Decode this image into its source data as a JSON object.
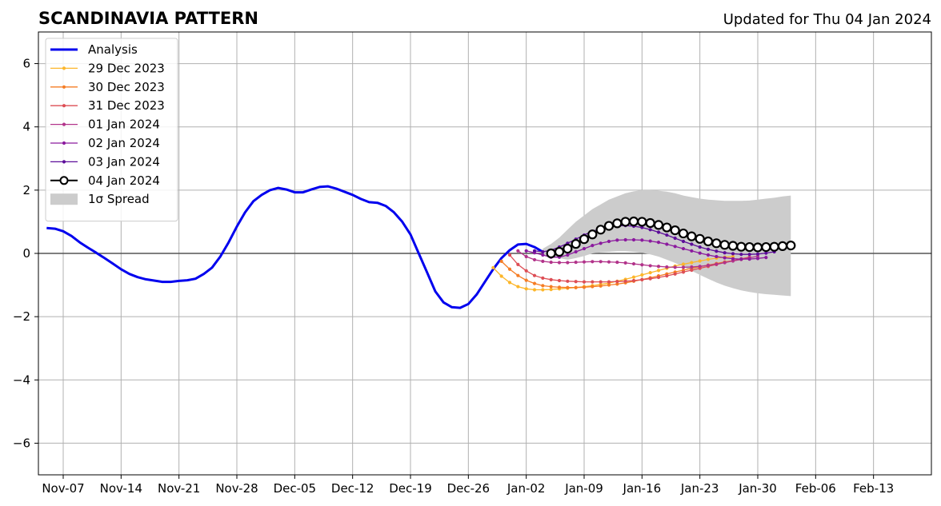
{
  "chart_data": {
    "type": "line",
    "title": "SCANDINAVIA PATTERN",
    "subtitle": "Updated for Thu 04 Jan 2024",
    "xlabel": "",
    "ylabel": "",
    "x_axis": {
      "type": "date",
      "range": [
        "2023-11-04",
        "2024-02-20"
      ],
      "ticks": [
        "2023-11-07",
        "2023-11-14",
        "2023-11-21",
        "2023-11-28",
        "2023-12-05",
        "2023-12-12",
        "2023-12-19",
        "2023-12-26",
        "2024-01-02",
        "2024-01-09",
        "2024-01-16",
        "2024-01-23",
        "2024-01-30",
        "2024-02-06",
        "2024-02-13"
      ],
      "tick_labels": [
        "Nov-07",
        "Nov-14",
        "Nov-21",
        "Nov-28",
        "Dec-05",
        "Dec-12",
        "Dec-19",
        "Dec-26",
        "Jan-02",
        "Jan-09",
        "Jan-16",
        "Jan-23",
        "Jan-30",
        "Feb-06",
        "Feb-13"
      ]
    },
    "ylim": [
      -7,
      7
    ],
    "yticks": [
      -6,
      -4,
      -2,
      0,
      2,
      4,
      6
    ],
    "ytick_labels": [
      "−6",
      "−4",
      "−2",
      "0",
      "2",
      "4",
      "6"
    ],
    "grid": true,
    "legend_position": "top-left",
    "analysis": {
      "name": "Analysis",
      "color": "#0000ee",
      "start": "2023-11-05",
      "values": [
        0.8,
        0.78,
        0.7,
        0.55,
        0.35,
        0.18,
        0.02,
        -0.15,
        -0.32,
        -0.5,
        -0.65,
        -0.75,
        -0.82,
        -0.86,
        -0.9,
        -0.9,
        -0.87,
        -0.85,
        -0.8,
        -0.65,
        -0.45,
        -0.1,
        0.35,
        0.85,
        1.3,
        1.65,
        1.85,
        2.0,
        2.07,
        2.02,
        1.93,
        1.93,
        2.02,
        2.1,
        2.12,
        2.05,
        1.95,
        1.85,
        1.72,
        1.62,
        1.6,
        1.5,
        1.3,
        1.0,
        0.6,
        0.0,
        -0.6,
        -1.2,
        -1.55,
        -1.7,
        -1.72,
        -1.6,
        -1.3,
        -0.9,
        -0.5,
        -0.15,
        0.1,
        0.28,
        0.3,
        0.2,
        0.05
      ]
    },
    "forecasts": [
      {
        "name": "29 Dec 2023",
        "color": "#fcb62a",
        "start": "2023-12-29",
        "values": [
          -0.45,
          -0.72,
          -0.92,
          -1.05,
          -1.12,
          -1.15,
          -1.15,
          -1.14,
          -1.12,
          -1.1,
          -1.08,
          -1.05,
          -1.02,
          -0.98,
          -0.94,
          -0.88,
          -0.82,
          -0.75,
          -0.68,
          -0.61,
          -0.54,
          -0.47,
          -0.4,
          -0.34,
          -0.29,
          -0.24,
          -0.19,
          -0.15,
          -0.12,
          -0.1
        ]
      },
      {
        "name": "30 Dec 2023",
        "color": "#f57d25",
        "start": "2023-12-30",
        "values": [
          -0.25,
          -0.5,
          -0.7,
          -0.85,
          -0.95,
          -1.02,
          -1.05,
          -1.07,
          -1.08,
          -1.08,
          -1.07,
          -1.05,
          -1.03,
          -1.0,
          -0.97,
          -0.93,
          -0.88,
          -0.83,
          -0.77,
          -0.71,
          -0.65,
          -0.59,
          -0.53,
          -0.47,
          -0.42,
          -0.37,
          -0.32,
          -0.27,
          -0.23,
          -0.19
        ]
      },
      {
        "name": "31 Dec 2023",
        "color": "#dd4e55",
        "start": "2023-12-31",
        "values": [
          -0.05,
          -0.35,
          -0.55,
          -0.7,
          -0.78,
          -0.83,
          -0.86,
          -0.88,
          -0.89,
          -0.9,
          -0.9,
          -0.9,
          -0.9,
          -0.89,
          -0.88,
          -0.86,
          -0.83,
          -0.8,
          -0.76,
          -0.71,
          -0.65,
          -0.59,
          -0.53,
          -0.47,
          -0.41,
          -0.35,
          -0.29,
          -0.23,
          -0.17,
          -0.12
        ]
      },
      {
        "name": "01 Jan 2024",
        "color": "#b2338a",
        "start": "2024-01-01",
        "values": [
          0.08,
          -0.1,
          -0.2,
          -0.25,
          -0.28,
          -0.29,
          -0.29,
          -0.28,
          -0.27,
          -0.26,
          -0.26,
          -0.27,
          -0.28,
          -0.3,
          -0.33,
          -0.36,
          -0.39,
          -0.41,
          -0.43,
          -0.44,
          -0.44,
          -0.43,
          -0.41,
          -0.38,
          -0.34,
          -0.29,
          -0.24,
          -0.19,
          -0.14,
          -0.09
        ]
      },
      {
        "name": "02 Jan 2024",
        "color": "#8b1a9e",
        "start": "2024-01-02",
        "values": [
          0.08,
          0.02,
          -0.05,
          -0.12,
          -0.12,
          -0.05,
          0.05,
          0.15,
          0.25,
          0.32,
          0.38,
          0.42,
          0.43,
          0.43,
          0.42,
          0.39,
          0.35,
          0.29,
          0.22,
          0.15,
          0.08,
          0.01,
          -0.05,
          -0.1,
          -0.14,
          -0.17,
          -0.18,
          -0.18,
          -0.16,
          -0.13
        ]
      },
      {
        "name": "03 Jan 2024",
        "color": "#5c0d99",
        "start": "2024-01-03",
        "values": [
          0.08,
          0.05,
          0.1,
          0.2,
          0.32,
          0.45,
          0.58,
          0.7,
          0.78,
          0.84,
          0.87,
          0.88,
          0.86,
          0.82,
          0.75,
          0.67,
          0.58,
          0.48,
          0.38,
          0.29,
          0.2,
          0.13,
          0.07,
          0.02,
          -0.01,
          -0.03,
          -0.03,
          -0.02,
          0.01,
          0.05
        ]
      },
      {
        "name": "04 Jan 2024",
        "color": "#000000",
        "start": "2024-01-05",
        "values": [
          0.0,
          0.05,
          0.15,
          0.3,
          0.45,
          0.6,
          0.75,
          0.87,
          0.95,
          1.0,
          1.01,
          1.0,
          0.96,
          0.9,
          0.82,
          0.73,
          0.63,
          0.54,
          0.46,
          0.38,
          0.32,
          0.27,
          0.24,
          0.21,
          0.2,
          0.19,
          0.2,
          0.21,
          0.23,
          0.25
        ]
      }
    ],
    "spread": {
      "name": "1σ Spread",
      "color": "#cccccc",
      "start": "2024-01-04",
      "upper": [
        0.15,
        0.3,
        0.5,
        0.75,
        1.0,
        1.2,
        1.4,
        1.55,
        1.7,
        1.8,
        1.9,
        1.96,
        2.0,
        2.0,
        1.98,
        1.95,
        1.9,
        1.83,
        1.78,
        1.73,
        1.7,
        1.68,
        1.66,
        1.66,
        1.66,
        1.67,
        1.7,
        1.73,
        1.76,
        1.8,
        1.83
      ],
      "lower": [
        -0.05,
        -0.1,
        -0.15,
        -0.2,
        -0.15,
        -0.08,
        0.0,
        0.03,
        0.05,
        0.07,
        0.07,
        0.05,
        0.02,
        -0.03,
        -0.1,
        -0.2,
        -0.3,
        -0.42,
        -0.55,
        -0.68,
        -0.8,
        -0.92,
        -1.02,
        -1.1,
        -1.17,
        -1.22,
        -1.26,
        -1.29,
        -1.31,
        -1.33,
        -1.35
      ]
    }
  }
}
